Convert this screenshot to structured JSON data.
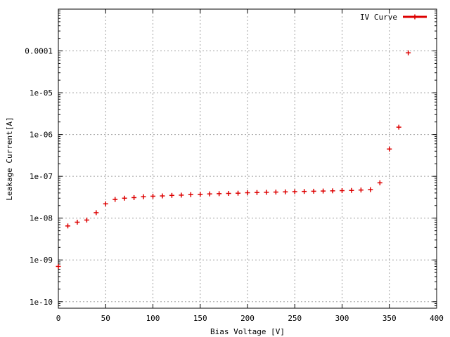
{
  "chart_data": {
    "type": "scatter",
    "xlabel": "Bias Voltage [V]",
    "ylabel": "Leakage Current[A]",
    "xlim": [
      0,
      400
    ],
    "ylim": [
      7e-11,
      0.001
    ],
    "yscale": "log",
    "grid": true,
    "legend_position": "top-right",
    "color": "#dd0000",
    "x_ticks": [
      "0",
      "50",
      "100",
      "150",
      "200",
      "250",
      "300",
      "350",
      "400"
    ],
    "x_tick_values": [
      0,
      50,
      100,
      150,
      200,
      250,
      300,
      350,
      400
    ],
    "y_ticks": [
      "1e-10",
      "1e-09",
      "1e-08",
      "1e-07",
      "1e-06",
      "1e-05",
      "0.0001"
    ],
    "y_tick_values": [
      1e-10,
      1e-09,
      1e-08,
      1e-07,
      1e-06,
      1e-05,
      0.0001
    ],
    "series": [
      {
        "name": "IV Curve",
        "x": [
          0,
          10,
          20,
          30,
          40,
          50,
          60,
          70,
          80,
          90,
          100,
          110,
          120,
          130,
          140,
          150,
          160,
          170,
          180,
          190,
          200,
          210,
          220,
          230,
          240,
          250,
          260,
          270,
          280,
          290,
          300,
          310,
          320,
          330,
          340,
          350,
          360,
          370
        ],
        "y": [
          7e-10,
          6.5e-09,
          8e-09,
          9e-09,
          1.35e-08,
          2.2e-08,
          2.8e-08,
          3e-08,
          3.1e-08,
          3.25e-08,
          3.35e-08,
          3.4e-08,
          3.5e-08,
          3.55e-08,
          3.65e-08,
          3.7e-08,
          3.8e-08,
          3.85e-08,
          3.9e-08,
          3.95e-08,
          4.05e-08,
          4.1e-08,
          4.15e-08,
          4.2e-08,
          4.25e-08,
          4.3e-08,
          4.35e-08,
          4.4e-08,
          4.45e-08,
          4.5e-08,
          4.55e-08,
          4.6e-08,
          4.7e-08,
          4.8e-08,
          7e-08,
          4.5e-07,
          1.5e-06,
          9e-05
        ]
      }
    ]
  }
}
